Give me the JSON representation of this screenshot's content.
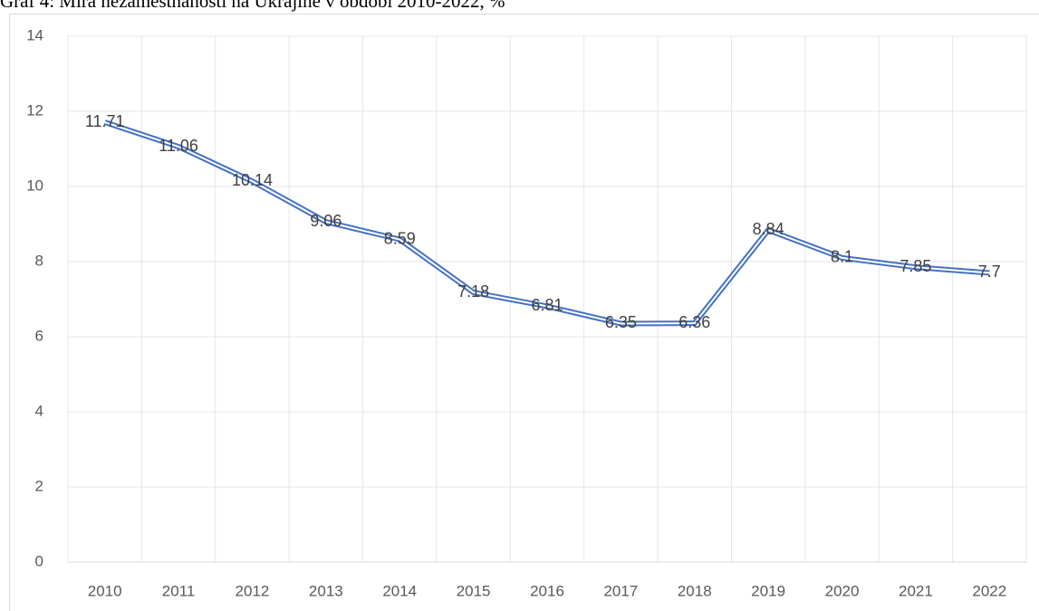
{
  "chart_data": {
    "type": "line",
    "title": "Graf 4: Míra nezaměstnanosti na Ukrajině v období 2010-2022, %",
    "categories": [
      "2010",
      "2011",
      "2012",
      "2013",
      "2014",
      "2015",
      "2016",
      "2017",
      "2018",
      "2019",
      "2020",
      "2021",
      "2022"
    ],
    "series": [
      {
        "name": "Míra nezaměstnanosti",
        "color": "#4472c4",
        "values": [
          11.71,
          11.06,
          10.14,
          9.06,
          8.59,
          7.18,
          6.81,
          6.35,
          6.36,
          8.84,
          8.1,
          7.85,
          7.7
        ]
      }
    ],
    "ylim": [
      0,
      14
    ],
    "yticks": [
      0,
      2,
      4,
      6,
      8,
      10,
      12,
      14
    ],
    "grid": true
  }
}
